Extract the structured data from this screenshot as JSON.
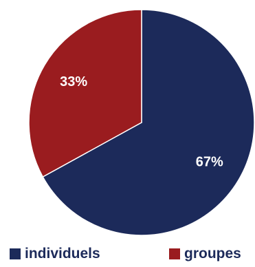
{
  "chart_data": {
    "type": "pie",
    "slices": [
      {
        "name": "individuels",
        "value": 67,
        "label": "67%",
        "color": "#1c2a5a"
      },
      {
        "name": "groupes",
        "value": 33,
        "label": "33%",
        "color": "#9a1c1f"
      }
    ],
    "start_angle_deg": 0,
    "direction": "clockwise",
    "legend_position": "bottom"
  }
}
